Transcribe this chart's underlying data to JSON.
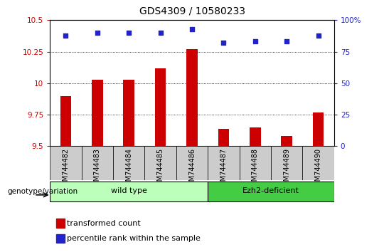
{
  "title": "GDS4309 / 10580233",
  "samples": [
    "GSM744482",
    "GSM744483",
    "GSM744484",
    "GSM744485",
    "GSM744486",
    "GSM744487",
    "GSM744488",
    "GSM744489",
    "GSM744490"
  ],
  "transformed_count": [
    9.9,
    10.03,
    10.03,
    10.12,
    10.27,
    9.64,
    9.65,
    9.58,
    9.77
  ],
  "percentile_rank": [
    88,
    90,
    90,
    90,
    93,
    82,
    83,
    83,
    88
  ],
  "ylim_left": [
    9.5,
    10.5
  ],
  "yticks_left": [
    9.5,
    9.75,
    10.0,
    10.25,
    10.5
  ],
  "ytick_labels_left": [
    "9.5",
    "9.75",
    "10",
    "10.25",
    "10.5"
  ],
  "ylim_right": [
    0,
    100
  ],
  "yticks_right": [
    0,
    25,
    50,
    75,
    100
  ],
  "ytick_labels_right": [
    "0",
    "25",
    "50",
    "75",
    "100%"
  ],
  "bar_color": "#cc0000",
  "dot_color": "#2222cc",
  "groups": [
    {
      "label": "wild type",
      "indices": [
        0,
        1,
        2,
        3,
        4
      ],
      "color": "#bbffbb"
    },
    {
      "label": "Ezh2-deficient",
      "indices": [
        5,
        6,
        7,
        8
      ],
      "color": "#44cc44"
    }
  ],
  "legend_items": [
    {
      "label": "transformed count",
      "color": "#cc0000"
    },
    {
      "label": "percentile rank within the sample",
      "color": "#2222cc"
    }
  ],
  "genotype_label": "genotype/variation",
  "background_color": "#ffffff",
  "tick_color_left": "#cc0000",
  "tick_color_right": "#2222cc",
  "xticklabel_bg": "#cccccc",
  "bar_width": 0.35
}
